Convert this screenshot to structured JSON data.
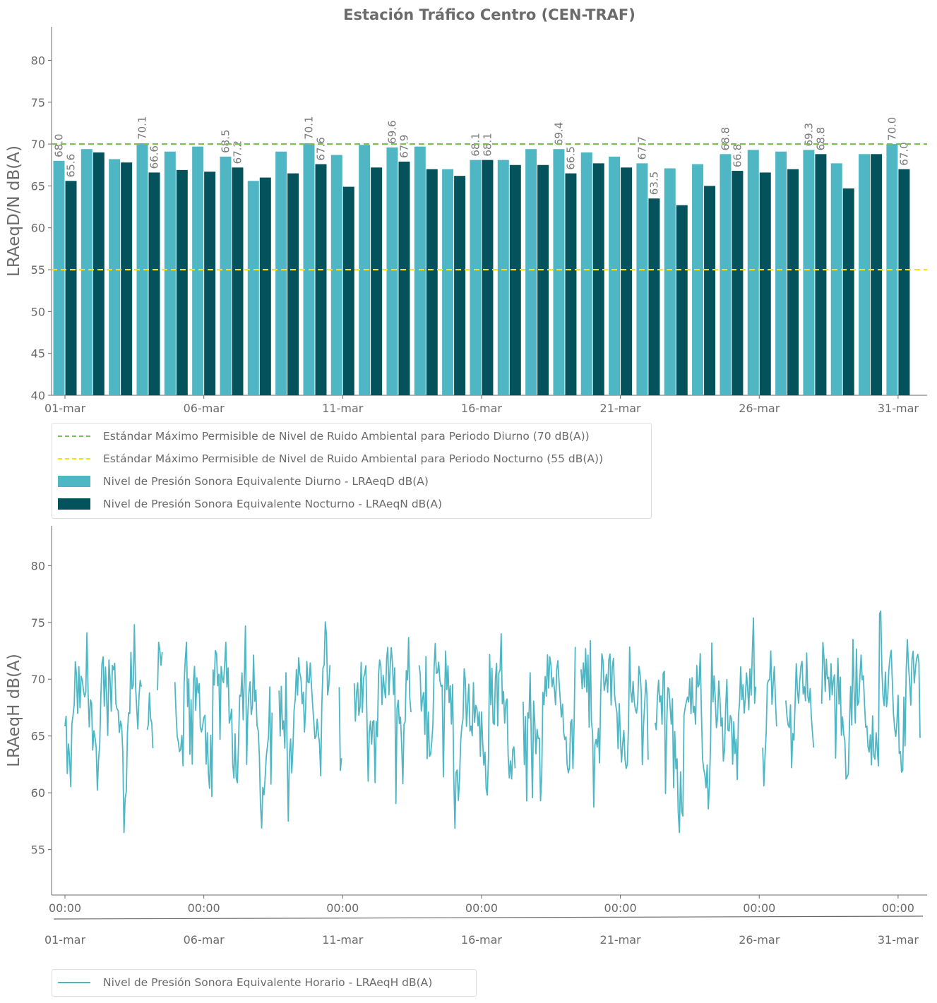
{
  "title": "Estación Tráfico Centro (CEN-TRAF)",
  "colors": {
    "diurno": "#4fb6c4",
    "nocturno": "#04535c",
    "std_diurno": "#7cbf5a",
    "std_nocturno": "#f3e21a",
    "axis": "#6b6b6b"
  },
  "chart_data": [
    {
      "type": "bar",
      "ylabel": "LRAeqD/N dB(A)",
      "ylim": [
        40,
        84
      ],
      "yticks": [
        40,
        45,
        50,
        55,
        60,
        65,
        70,
        75,
        80
      ],
      "x_tick_labels": [
        "01-mar",
        "06-mar",
        "11-mar",
        "16-mar",
        "21-mar",
        "26-mar",
        "31-mar"
      ],
      "categories": [
        "01-mar",
        "02-mar",
        "03-mar",
        "04-mar",
        "05-mar",
        "06-mar",
        "07-mar",
        "08-mar",
        "09-mar",
        "10-mar",
        "11-mar",
        "12-mar",
        "13-mar",
        "14-mar",
        "15-mar",
        "16-mar",
        "17-mar",
        "18-mar",
        "19-mar",
        "20-mar",
        "21-mar",
        "22-mar",
        "23-mar",
        "24-mar",
        "25-mar",
        "26-mar",
        "27-mar",
        "28-mar",
        "29-mar",
        "30-mar",
        "31-mar"
      ],
      "series": [
        {
          "name": "Nivel de Presión Sonora Equivalente Diurno - LRAeqD dB(A)",
          "values": [
            68.0,
            69.4,
            68.2,
            70.1,
            69.1,
            69.7,
            68.5,
            65.6,
            69.1,
            70.1,
            68.7,
            69.9,
            69.6,
            69.7,
            67.0,
            68.1,
            68.1,
            69.4,
            69.4,
            69.0,
            68.5,
            67.7,
            67.1,
            67.6,
            68.8,
            69.3,
            69.1,
            69.3,
            67.7,
            68.8,
            70.0
          ]
        },
        {
          "name": "Nivel de Presión Sonora Equivalente Nocturno - LRAeqN dB(A)",
          "values": [
            65.6,
            69.0,
            67.8,
            66.6,
            66.9,
            66.7,
            67.2,
            66.0,
            66.5,
            67.6,
            64.9,
            67.2,
            67.9,
            67.0,
            66.2,
            68.1,
            67.5,
            67.5,
            66.5,
            67.7,
            67.2,
            63.5,
            62.7,
            65.0,
            66.8,
            66.6,
            67.0,
            68.8,
            64.7,
            68.8,
            67.0
          ]
        }
      ],
      "labeled_points": {
        "diurno_days": [
          1,
          4,
          7,
          10,
          13,
          16,
          19,
          22,
          25,
          28,
          31
        ],
        "nocturno_days": [
          1,
          4,
          7,
          10,
          13,
          16,
          19,
          22,
          25,
          28,
          31
        ]
      },
      "hlines": [
        {
          "name": "Estándar Máximo Permisible de Nivel de Ruido Ambiental para Periodo Diurno (70 dB(A))",
          "y": 70,
          "style": "dashed",
          "color": "#7cbf5a"
        },
        {
          "name": "Estándar Máximo Permisible de Nivel de Ruido Ambiental para Periodo Nocturno (55 dB(A))",
          "y": 55,
          "style": "dashed",
          "color": "#f3e21a"
        }
      ],
      "grid": false,
      "legend_position": "bottom-left, below plot"
    },
    {
      "type": "line",
      "ylabel": "LRAeqH dB(A)",
      "ylim": [
        51,
        83.5
      ],
      "yticks": [
        55,
        60,
        65,
        70,
        75,
        80
      ],
      "x_tick_labels_time": [
        "00:00",
        "00:00",
        "00:00",
        "00:00",
        "00:00",
        "00:00",
        "00:00"
      ],
      "x_tick_labels_date": [
        "01-mar",
        "06-mar",
        "11-mar",
        "16-mar",
        "21-mar",
        "26-mar",
        "31-mar"
      ],
      "x_unit": "hours since 01-mar 00:00",
      "xlim": [
        -0.5,
        743
      ],
      "series": [
        {
          "name": "Nivel de Presión Sonora Equivalente Horario - LRAeqH dB(A)",
          "x_start": 0,
          "x_step": 1,
          "values": "hourly series (744 h) — generated deterministically by the render script from the daily day/night levels",
          "day_levels_ref": "same as bar chart diurno",
          "gaps_hours": [
            [
              67,
              71
            ],
            [
              77,
              80
            ],
            [
              85,
              95
            ],
            [
              180,
              185
            ],
            [
              230,
              237
            ],
            [
              240,
              250
            ],
            [
              300,
              306
            ],
            [
              390,
              396
            ],
            [
              442,
              446
            ],
            [
              505,
              510
            ],
            [
              598,
              603
            ],
            [
              616,
              623
            ],
            [
              648,
              654
            ],
            [
              740,
              744
            ]
          ],
          "annotated_peaks": [
            {
              "x": 705,
              "y": 76.0
            },
            {
              "x": 60,
              "y": 74.8
            },
            {
              "x": 454,
              "y": 73.4
            },
            {
              "x": 377,
              "y": 74.0
            },
            {
              "x": 681,
              "y": 73.5
            }
          ],
          "annotated_troughs": [
            {
              "x": 170,
              "y": 56.9
            },
            {
              "x": 193,
              "y": 57.5
            },
            {
              "x": 530,
              "y": 58.3
            }
          ]
        }
      ],
      "grid": false,
      "legend_position": "bottom-left, below plot"
    }
  ]
}
